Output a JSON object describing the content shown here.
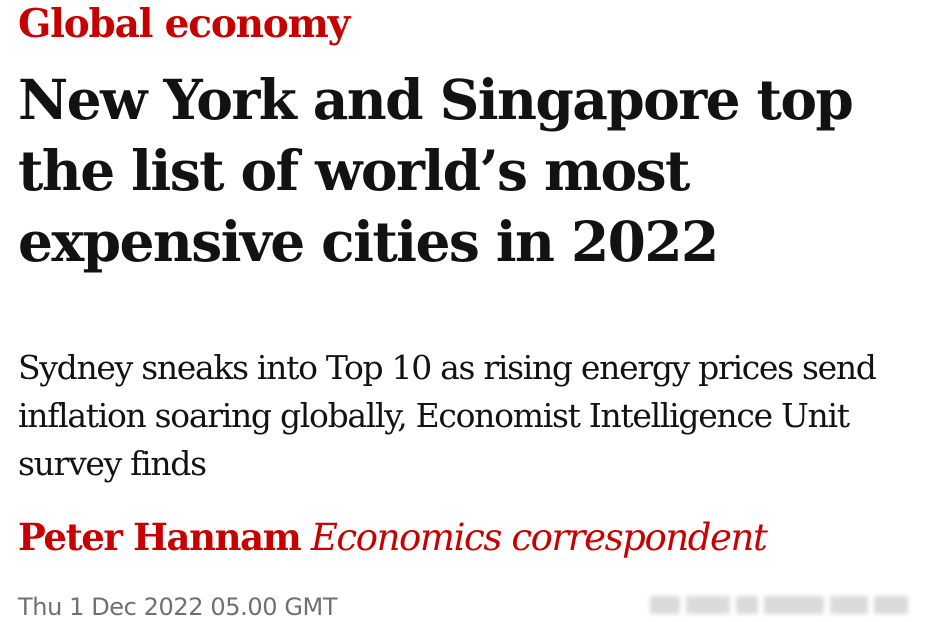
{
  "section": "Global economy",
  "headline": "New York and Singapore top the list of world’s most expensive cities in 2022",
  "standfirst": "Sydney sneaks into Top 10 as rising energy prices send inflation soaring globally, Economist Intelligence Unit survey finds",
  "byline": {
    "author": "Peter Hannam",
    "role": "Economics correspondent"
  },
  "dateline": "Thu 1 Dec 2022 05.00 GMT",
  "colors": {
    "accent": "#c70000",
    "text": "#121212",
    "muted": "#707070",
    "background": "#ffffff"
  }
}
